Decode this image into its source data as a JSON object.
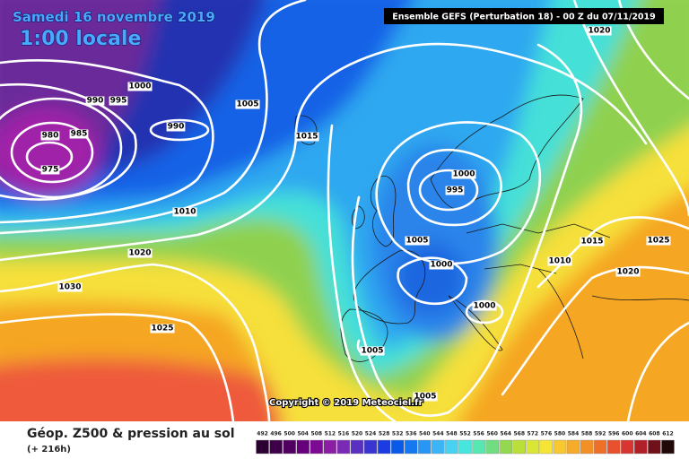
{
  "header": {
    "date": "Samedi 16 novembre 2019",
    "time": "1:00 locale",
    "model": "Ensemble GEFS  (Perturbation 18)  - 00 Z du 07/11/2019",
    "copyright": "Copyright © 2019 Meteociel.fr"
  },
  "legend": {
    "title": "Géop. Z500 & pression au sol",
    "lead": "(+ 216h)",
    "labels": [
      492,
      496,
      500,
      504,
      508,
      512,
      516,
      520,
      524,
      528,
      532,
      536,
      540,
      544,
      548,
      552,
      556,
      560,
      564,
      568,
      572,
      576,
      580,
      584,
      588,
      592,
      596,
      600,
      604,
      608,
      612
    ],
    "colors": [
      "#2a0030",
      "#3e0048",
      "#520060",
      "#66007a",
      "#7c0a92",
      "#8c1ea4",
      "#7a2ab4",
      "#5a30c0",
      "#3a34d0",
      "#1a3ce0",
      "#0a5aea",
      "#1478f0",
      "#2896f4",
      "#3cb4f6",
      "#46d2f0",
      "#46e6dc",
      "#56e8b0",
      "#70de80",
      "#94d850",
      "#bade3a",
      "#dae636",
      "#f6e436",
      "#f8c830",
      "#f6ac28",
      "#f29026",
      "#ee7028",
      "#e8502e",
      "#d83430",
      "#b02028",
      "#701018",
      "#200808"
    ]
  },
  "isobar_labels": [
    "1020",
    "1000",
    "990",
    "995",
    "1005",
    "990",
    "1015",
    "980",
    "985",
    "975",
    "1010",
    "1000",
    "995",
    "1020",
    "1005",
    "1000",
    "1015",
    "1025",
    "1010",
    "1030",
    "1020",
    "1000",
    "1025",
    "1005",
    "1005"
  ]
}
